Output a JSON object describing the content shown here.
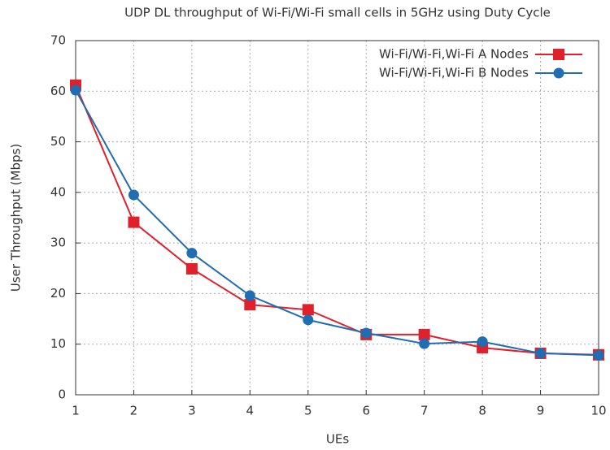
{
  "chart_data": {
    "type": "line",
    "title": "UDP DL throughput of Wi-Fi/Wi-Fi small cells in 5GHz using Duty Cycle",
    "x_label": "UEs",
    "y_label": "User Throughput (Mbps)",
    "x": [
      1,
      2,
      3,
      4,
      5,
      6,
      7,
      8,
      9,
      10
    ],
    "series": [
      {
        "name": "Wi-Fi/Wi-Fi,Wi-Fi A Nodes",
        "color": "#e0202a",
        "marker": "square",
        "values": [
          61.2,
          34.1,
          24.9,
          17.8,
          16.8,
          11.9,
          11.9,
          9.3,
          8.2,
          7.9
        ]
      },
      {
        "name": "Wi-Fi/Wi-Fi,Wi-Fi B Nodes",
        "color": "#1f6db3",
        "marker": "circle",
        "values": [
          60.2,
          39.5,
          28,
          19.6,
          14.8,
          12.2,
          10.1,
          10.5,
          8.2,
          7.8
        ]
      }
    ],
    "xlim": [
      1,
      10
    ],
    "xticks": [
      1,
      2,
      3,
      4,
      5,
      6,
      7,
      8,
      9,
      10
    ],
    "ylim": [
      0,
      70
    ],
    "yticks": [
      0,
      10,
      20,
      30,
      40,
      50,
      60,
      70
    ],
    "grid": true,
    "legend": "top-right"
  }
}
